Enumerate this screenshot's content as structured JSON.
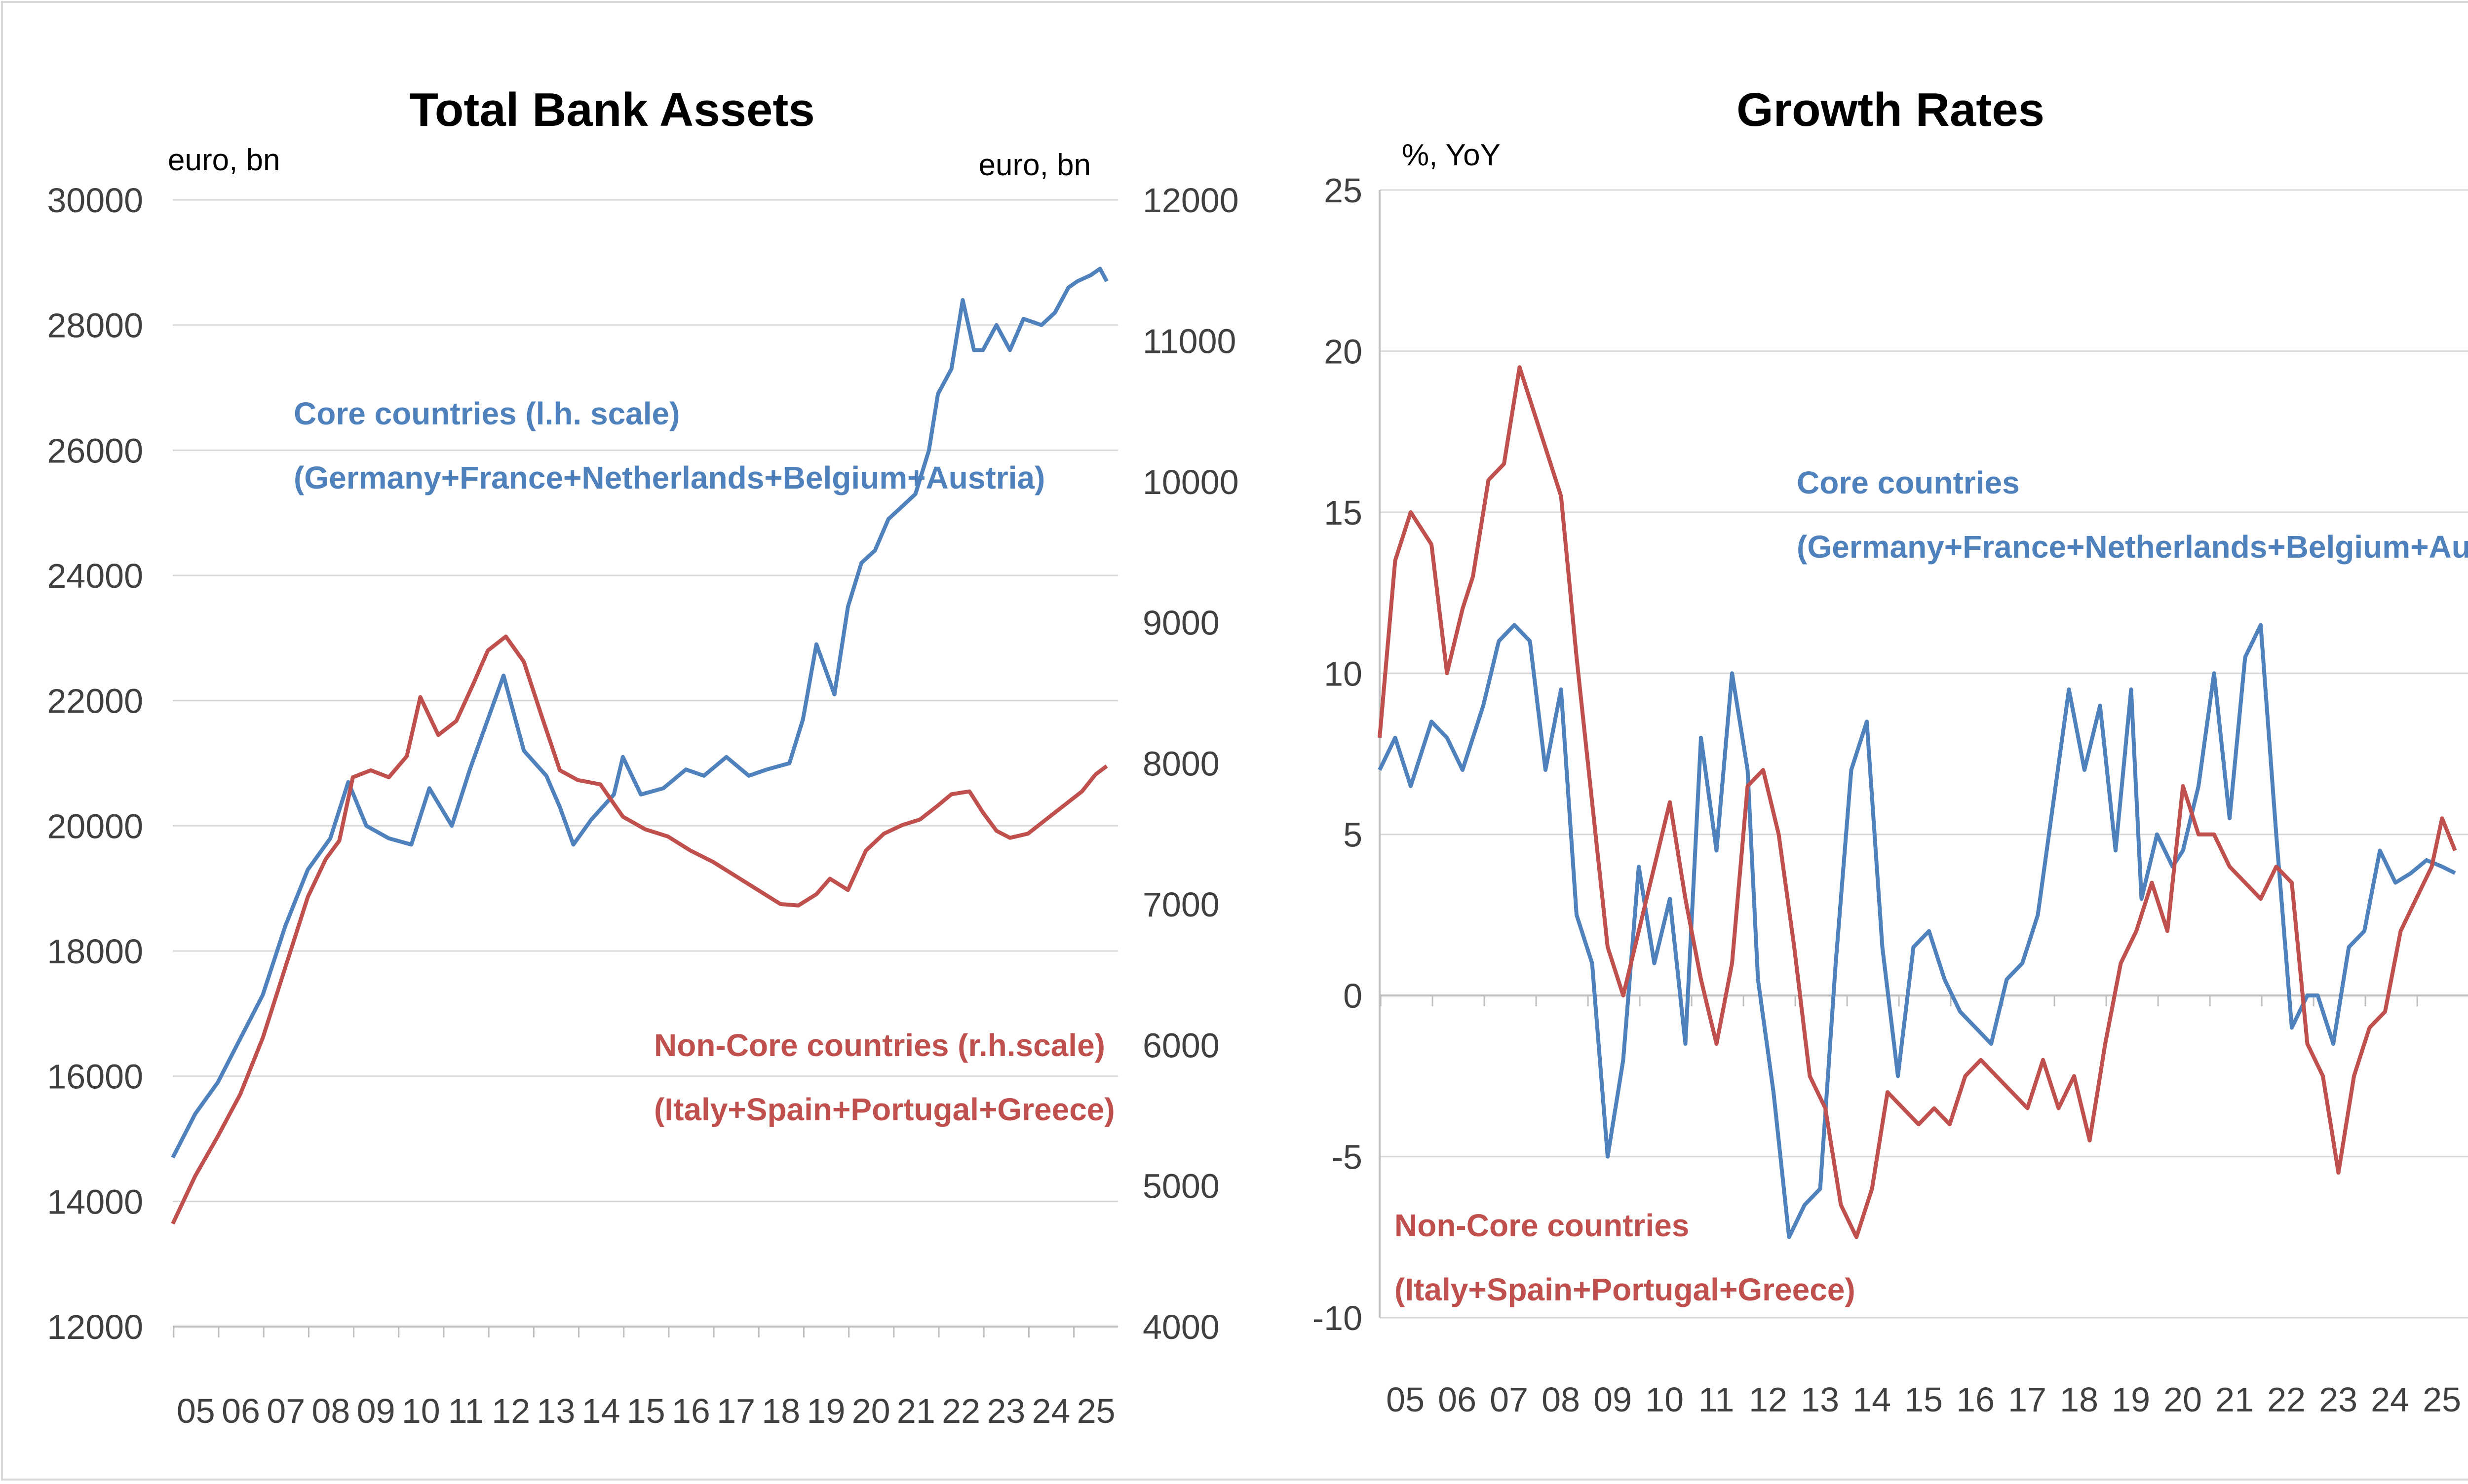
{
  "colors": {
    "core": "#4f81bd",
    "noncore": "#c0504d",
    "grid": "#d9d9d9",
    "axis": "#bfbfbf",
    "frame": "#d9d9d9"
  },
  "chart_data": [
    {
      "type": "line",
      "title": "Total Bank Assets",
      "left_unit": "euro, bn",
      "right_unit": "euro, bn",
      "ylim_left": [
        12000,
        30000
      ],
      "yticks_left": [
        "30000",
        "28000",
        "26000",
        "24000",
        "22000",
        "20000",
        "18000",
        "16000",
        "14000",
        "12000"
      ],
      "ylim_right": [
        4000,
        12000
      ],
      "yticks_right": [
        "12000",
        "11000",
        "10000",
        "9000",
        "8000",
        "7000",
        "6000",
        "5000",
        "4000"
      ],
      "xlim": [
        2005,
        2026
      ],
      "x_labels": [
        "05",
        "06",
        "07",
        "08",
        "09",
        "10",
        "11",
        "12",
        "13",
        "14",
        "15",
        "16",
        "17",
        "18",
        "19",
        "20",
        "21",
        "22",
        "23",
        "24",
        "25"
      ],
      "annotations": {
        "core_line1": "Core countries (l.h. scale)",
        "core_line2": "(Germany+France+Netherlands+Belgium+Austria)",
        "noncore_line1": "Non-Core countries (r.h.scale)",
        "noncore_line2": "(Italy+Spain+Portugal+Greece)"
      },
      "series": [
        {
          "name": "Core countries",
          "axis": "left",
          "x": [
            2005.0,
            2005.5,
            2006.0,
            2006.5,
            2007.0,
            2007.5,
            2008.0,
            2008.5,
            2008.9,
            2009.3,
            2009.8,
            2010.3,
            2010.7,
            2011.2,
            2011.6,
            2012.0,
            2012.35,
            2012.8,
            2013.3,
            2013.6,
            2013.9,
            2014.3,
            2014.8,
            2015.0,
            2015.4,
            2015.9,
            2016.4,
            2016.8,
            2017.3,
            2017.8,
            2018.2,
            2018.7,
            2019.0,
            2019.3,
            2019.7,
            2020.0,
            2020.3,
            2020.6,
            2020.9,
            2021.2,
            2021.5,
            2021.8,
            2022.0,
            2022.3,
            2022.55,
            2022.8,
            2023.0,
            2023.3,
            2023.6,
            2023.9,
            2024.3,
            2024.6,
            2024.9,
            2025.1,
            2025.4,
            2025.6,
            2025.75
          ],
          "values": [
            14700,
            15400,
            15900,
            16600,
            17300,
            18400,
            19300,
            19800,
            20700,
            20000,
            19800,
            19700,
            20600,
            20000,
            20900,
            21700,
            22400,
            21200,
            20800,
            20300,
            19700,
            20100,
            20500,
            21100,
            20500,
            20600,
            20900,
            20800,
            21100,
            20800,
            20900,
            21000,
            21700,
            22900,
            22100,
            23500,
            24200,
            24400,
            24900,
            25100,
            25300,
            26000,
            26900,
            27300,
            28400,
            27600,
            27600,
            28000,
            27600,
            28100,
            28000,
            28200,
            28600,
            28700,
            28800,
            28900,
            28700
          ]
        },
        {
          "name": "Non-Core countries",
          "axis": "right",
          "x": [
            2005.0,
            2005.5,
            2006.0,
            2006.5,
            2007.0,
            2007.5,
            2008.0,
            2008.4,
            2008.7,
            2009.0,
            2009.4,
            2009.8,
            2010.2,
            2010.5,
            2010.9,
            2011.3,
            2011.7,
            2012.0,
            2012.4,
            2012.8,
            2013.2,
            2013.6,
            2014.0,
            2014.5,
            2015.0,
            2015.5,
            2016.0,
            2016.5,
            2017.0,
            2017.5,
            2018.0,
            2018.5,
            2018.9,
            2019.3,
            2019.6,
            2020.0,
            2020.4,
            2020.8,
            2021.2,
            2021.6,
            2022.0,
            2022.3,
            2022.7,
            2023.0,
            2023.3,
            2023.6,
            2024.0,
            2024.4,
            2024.8,
            2025.2,
            2025.5,
            2025.75
          ],
          "values": [
            4730,
            5070,
            5350,
            5650,
            6050,
            6550,
            7050,
            7320,
            7450,
            7900,
            7950,
            7900,
            8050,
            8470,
            8200,
            8300,
            8580,
            8800,
            8900,
            8720,
            8330,
            7950,
            7880,
            7850,
            7620,
            7530,
            7480,
            7380,
            7300,
            7200,
            7100,
            7000,
            6990,
            7070,
            7180,
            7100,
            7380,
            7500,
            7560,
            7600,
            7700,
            7780,
            7800,
            7650,
            7520,
            7470,
            7500,
            7600,
            7700,
            7800,
            7920,
            7980
          ]
        }
      ]
    },
    {
      "type": "line",
      "title": "Growth Rates",
      "left_unit": "%, YoY",
      "ylim": [
        -10,
        25
      ],
      "yticks": [
        "25",
        "20",
        "15",
        "10",
        "5",
        "0",
        "-5",
        "-10"
      ],
      "xlim": [
        2005,
        2026
      ],
      "x_labels": [
        "05",
        "06",
        "07",
        "08",
        "09",
        "10",
        "11",
        "12",
        "13",
        "14",
        "15",
        "16",
        "17",
        "18",
        "19",
        "20",
        "21",
        "22",
        "23",
        "24",
        "25"
      ],
      "annotations": {
        "core_line1": "Core countries",
        "core_line2": "(Germany+France+Netherlands+Belgium+Austria)",
        "noncore_line1": "Non-Core countries",
        "noncore_line2": "(Italy+Spain+Portugal+Greece)"
      },
      "series": [
        {
          "name": "Core countries",
          "x": [
            2005.0,
            2005.3,
            2005.6,
            2006.0,
            2006.3,
            2006.6,
            2007.0,
            2007.3,
            2007.6,
            2007.9,
            2008.2,
            2008.5,
            2008.8,
            2009.1,
            2009.4,
            2009.7,
            2010.0,
            2010.3,
            2010.6,
            2010.9,
            2011.2,
            2011.5,
            2011.8,
            2012.1,
            2012.3,
            2012.6,
            2012.9,
            2013.2,
            2013.5,
            2013.8,
            2014.1,
            2014.4,
            2014.7,
            2015.0,
            2015.3,
            2015.6,
            2015.9,
            2016.2,
            2016.5,
            2016.8,
            2017.1,
            2017.4,
            2017.7,
            2018.0,
            2018.3,
            2018.6,
            2018.9,
            2019.2,
            2019.5,
            2019.7,
            2020.0,
            2020.3,
            2020.5,
            2020.8,
            2021.1,
            2021.4,
            2021.7,
            2022.0,
            2022.3,
            2022.6,
            2022.9,
            2023.1,
            2023.4,
            2023.7,
            2024.0,
            2024.3,
            2024.6,
            2024.9,
            2025.2,
            2025.5,
            2025.75
          ],
          "values": [
            7.0,
            8.0,
            6.5,
            8.5,
            8.0,
            7.0,
            9.0,
            11.0,
            11.5,
            11.0,
            7.0,
            9.5,
            2.5,
            1.0,
            -5.0,
            -2.0,
            4.0,
            1.0,
            3.0,
            -1.5,
            8.0,
            4.5,
            10.0,
            7.0,
            0.5,
            -3.0,
            -7.5,
            -6.5,
            -6.0,
            1.0,
            7.0,
            8.5,
            1.5,
            -2.5,
            1.5,
            2.0,
            0.5,
            -0.5,
            -1.0,
            -1.5,
            0.5,
            1.0,
            2.5,
            6.0,
            9.5,
            7.0,
            9.0,
            4.5,
            9.5,
            3.0,
            5.0,
            4.0,
            4.5,
            6.5,
            10.0,
            5.5,
            10.5,
            11.5,
            5.0,
            -1.0,
            0.0,
            0.0,
            -1.5,
            1.5,
            2.0,
            4.5,
            3.5,
            3.8,
            4.2,
            4.0,
            3.8
          ]
        },
        {
          "name": "Non-Core countries",
          "x": [
            2005.0,
            2005.3,
            2005.6,
            2006.0,
            2006.3,
            2006.6,
            2006.8,
            2007.1,
            2007.4,
            2007.7,
            2007.9,
            2008.2,
            2008.5,
            2008.8,
            2009.1,
            2009.4,
            2009.7,
            2010.0,
            2010.3,
            2010.6,
            2010.9,
            2011.2,
            2011.5,
            2011.8,
            2012.1,
            2012.4,
            2012.7,
            2013.0,
            2013.3,
            2013.6,
            2013.9,
            2014.2,
            2014.5,
            2014.8,
            2015.1,
            2015.4,
            2015.7,
            2016.0,
            2016.3,
            2016.6,
            2016.9,
            2017.2,
            2017.5,
            2017.8,
            2018.1,
            2018.4,
            2018.7,
            2019.0,
            2019.3,
            2019.6,
            2019.9,
            2020.2,
            2020.5,
            2020.8,
            2021.1,
            2021.4,
            2021.7,
            2022.0,
            2022.3,
            2022.6,
            2022.9,
            2023.2,
            2023.5,
            2023.8,
            2024.1,
            2024.4,
            2024.7,
            2025.0,
            2025.3,
            2025.5,
            2025.75
          ],
          "values": [
            8.0,
            13.5,
            15.0,
            14.0,
            10.0,
            12.0,
            13.0,
            16.0,
            16.5,
            19.5,
            18.5,
            17.0,
            15.5,
            10.5,
            6.0,
            1.5,
            0.0,
            2.0,
            4.0,
            6.0,
            3.0,
            0.5,
            -1.5,
            1.0,
            6.5,
            7.0,
            5.0,
            1.5,
            -2.5,
            -3.5,
            -6.5,
            -7.5,
            -6.0,
            -3.0,
            -3.5,
            -4.0,
            -3.5,
            -4.0,
            -2.5,
            -2.0,
            -2.5,
            -3.0,
            -3.5,
            -2.0,
            -3.5,
            -2.5,
            -4.5,
            -1.5,
            1.0,
            2.0,
            3.5,
            2.0,
            6.5,
            5.0,
            5.0,
            4.0,
            3.5,
            3.0,
            4.0,
            3.5,
            -1.5,
            -2.5,
            -5.5,
            -2.5,
            -1.0,
            -0.5,
            2.0,
            3.0,
            4.0,
            5.5,
            4.5
          ]
        }
      ]
    }
  ]
}
